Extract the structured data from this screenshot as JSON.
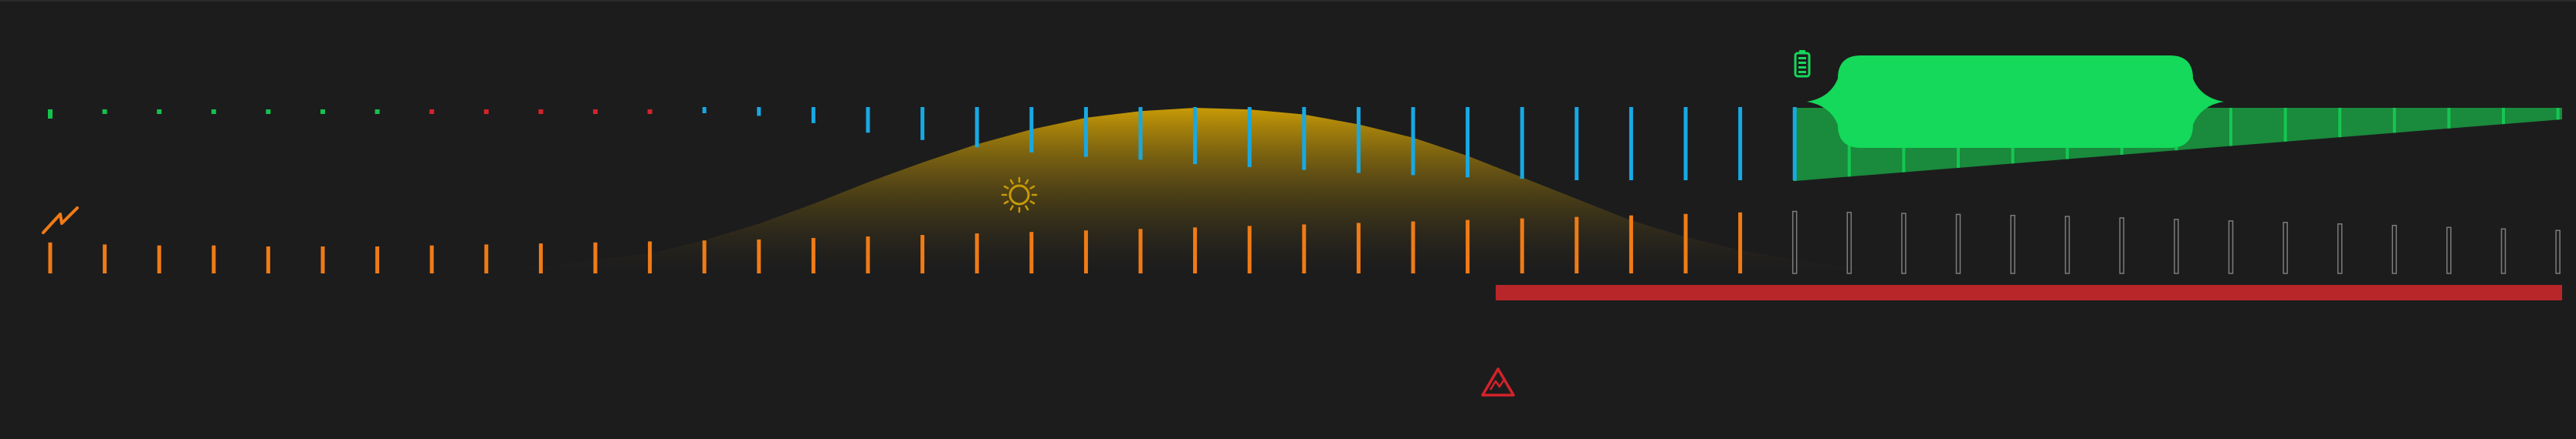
{
  "theme": {
    "background": "#1c1c1d",
    "solar_gradient_top": "#c79a06",
    "solar_gradient_bottom": "#1c1c1d",
    "battery_green": "#14d95a",
    "battery_dark_green": "#1a8a3c",
    "consumption_orange": "#f07b16",
    "import_blue": "#18a9e3",
    "price_green": "#14c24d",
    "price_red": "#d3232a",
    "outage_red": "#b8262a",
    "future_outline": "#7c7c7c"
  },
  "icons": {
    "consumption": "lightning-icon",
    "solar": "sun-icon",
    "battery": "battery-icon",
    "outage": "warning-triangle-icon"
  },
  "timeline": {
    "slots": 48,
    "now_index": 32,
    "price_levels": [
      "green",
      "green",
      "green",
      "green",
      "green",
      "green",
      "green",
      "red",
      "red",
      "red",
      "red",
      "red",
      "blue",
      "blue",
      "blue",
      "blue",
      "blue",
      "blue",
      "blue",
      "blue",
      "blue",
      "blue",
      "blue",
      "blue",
      "blue",
      "blue",
      "blue",
      "blue",
      "blue",
      "blue",
      "blue",
      "blue",
      "blue"
    ],
    "import_heights": [
      0,
      0,
      0,
      0,
      0,
      0,
      0,
      0,
      0,
      0,
      0,
      0,
      0.05,
      0.12,
      0.22,
      0.35,
      0.45,
      0.55,
      0.62,
      0.68,
      0.72,
      0.78,
      0.82,
      0.86,
      0.9,
      0.93,
      0.96,
      0.98,
      1,
      1,
      1,
      1,
      1
    ],
    "consumption_levels": [
      0.28,
      0.24,
      0.22,
      0.22,
      0.2,
      0.2,
      0.2,
      0.22,
      0.24,
      0.26,
      0.28,
      0.3,
      0.32,
      0.34,
      0.37,
      0.4,
      0.43,
      0.46,
      0.49,
      0.52,
      0.55,
      0.58,
      0.61,
      0.64,
      0.67,
      0.7,
      0.73,
      0.76,
      0.79,
      0.82,
      0.85,
      0.88,
      0.9,
      0.88,
      0.86,
      0.84,
      0.82,
      0.8,
      0.77,
      0.74,
      0.71,
      0.68,
      0.65,
      0.62,
      0.58,
      0.55,
      0.52,
      0.48
    ],
    "solar_profile": [
      0,
      0,
      0,
      0,
      0,
      0,
      0,
      0,
      0.02,
      0.04,
      0.08,
      0.12,
      0.2,
      0.3,
      0.42,
      0.55,
      0.67,
      0.78,
      0.87,
      0.94,
      0.98,
      1,
      0.99,
      0.96,
      0.9,
      0.82,
      0.71,
      0.58,
      0.45,
      0.32,
      0.22,
      0.14,
      0.08,
      0.04,
      0.02,
      0,
      0,
      0,
      0,
      0,
      0,
      0,
      0,
      0,
      0,
      0,
      0,
      0
    ],
    "battery_soc": [
      0.45,
      0.5,
      0.55,
      0.6,
      0.64,
      0.68,
      0.72,
      0.76,
      0.8,
      0.84,
      0.87,
      0.9,
      0.93,
      0.96,
      0.98,
      1
    ],
    "outage_window": [
      0.58,
      1.0
    ]
  }
}
